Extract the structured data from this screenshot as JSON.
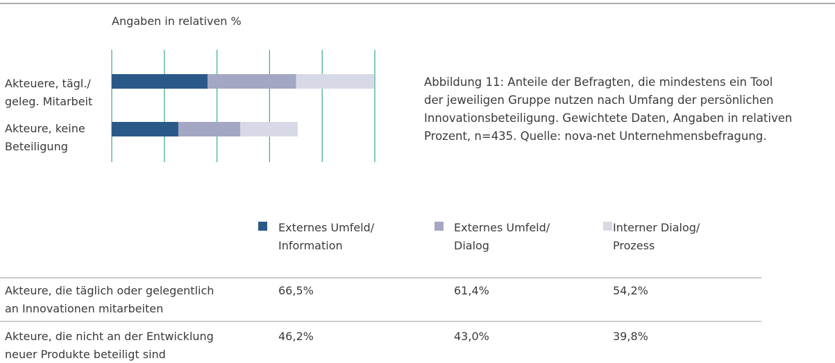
{
  "chart_data": {
    "type": "stacked_barh",
    "subtitle": "Angaben in relativen %",
    "categories": [
      "Akteuere, tägl./\ngeleg. Mitarbeit",
      "Akteure, keine\nBeteiligung"
    ],
    "row_labels": [
      "Akteure, die täglich oder gelegentlich\nan Innovationen mitarbeiten",
      "Akteure, die nicht an der Entwicklung\nneuer Produkte beteiligt sind"
    ],
    "series": [
      {
        "name": "Externes Umfeld/\nInformation",
        "color": "#2b5987",
        "values": [
          66.5,
          46.2
        ],
        "value_labels": [
          "66,5%",
          "46,2%"
        ]
      },
      {
        "name": "Externes Umfeld/\nDialog",
        "color": "#a3a7c3",
        "values": [
          61.4,
          43.0
        ],
        "value_labels": [
          "61,4%",
          "43,0%"
        ]
      },
      {
        "name": "Interner Dialog/\nProzess",
        "color": "#d8d9e6",
        "values": [
          54.2,
          39.8
        ],
        "value_labels": [
          "54,2%",
          "39,8%"
        ]
      }
    ],
    "xlim": [
      0,
      182.5
    ],
    "xticks": [
      0,
      36.5,
      73,
      109.5,
      146,
      182.5
    ],
    "grid": true,
    "caption": "Abbildung 11: Anteile der Befragten, die mindestens ein Tool\nder jeweiligen Gruppe nutzen nach Umfang der persönlichen\nInnovationsbeteiligung. Gewichtete Daten, Angaben in relativen\nProzent, n=435. Quelle: nova-net Unternehmensbefragung."
  }
}
